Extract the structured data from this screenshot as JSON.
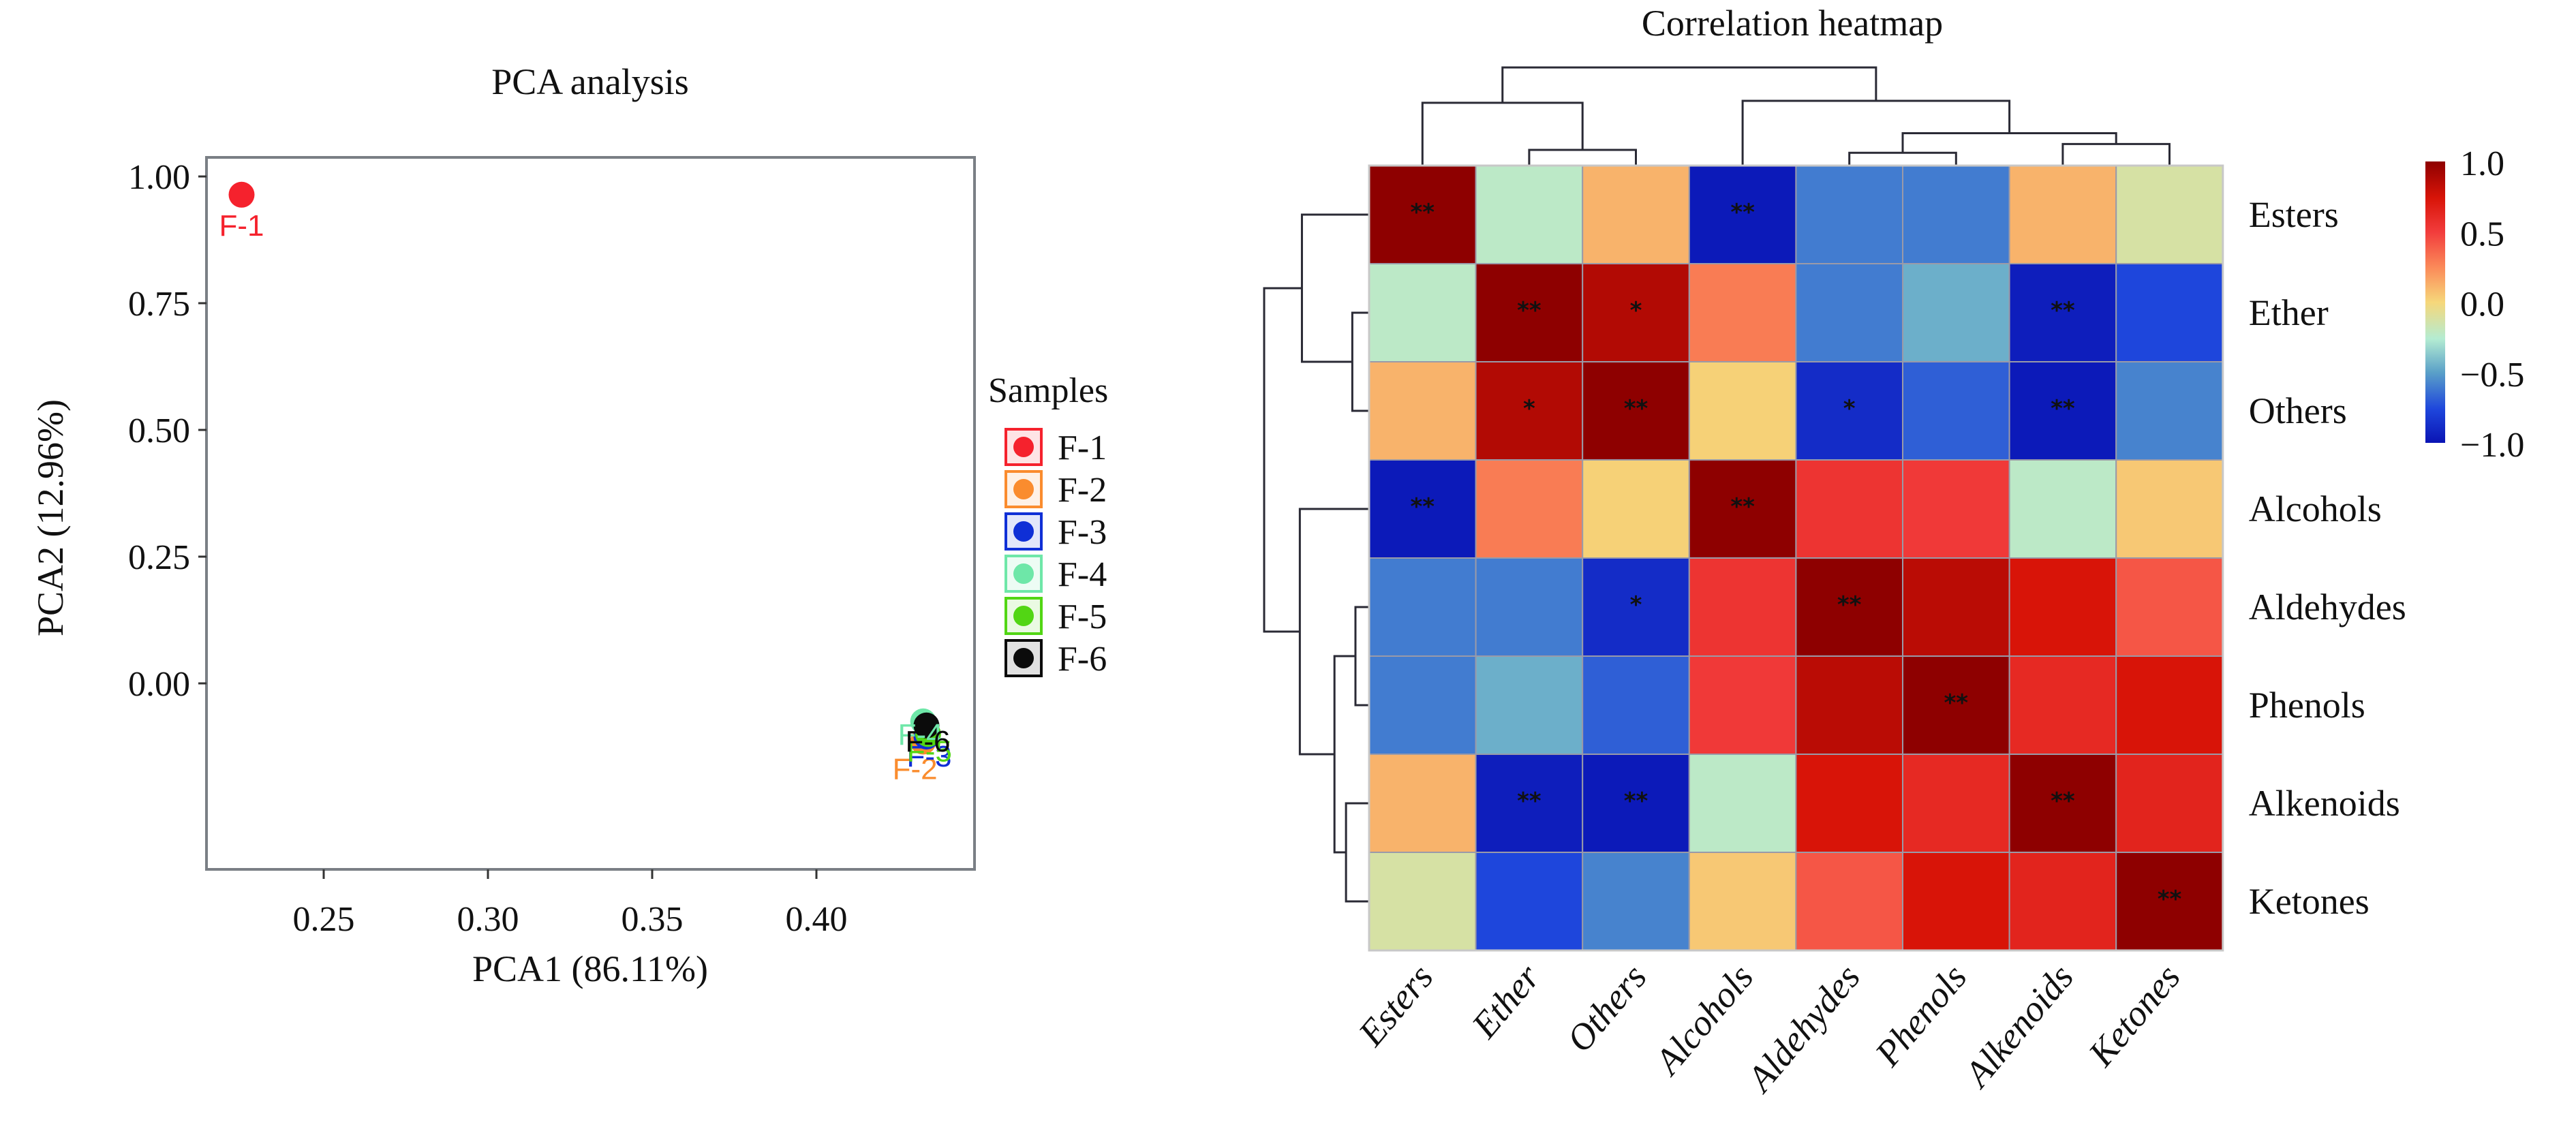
{
  "chart_data": [
    {
      "type": "scatter",
      "title": "PCA analysis",
      "xlabel": "PCA1 (86.11%)",
      "ylabel": "PCA2 (12.96%)",
      "xlim": [
        0.215,
        0.4395
      ],
      "ylim": [
        -0.37,
        1.04
      ],
      "xticks": [
        "0.25",
        "0.30",
        "0.35",
        "0.40"
      ],
      "xtick_values": [
        0.25,
        0.3,
        0.35,
        0.4
      ],
      "yticks": [
        "1.00",
        "0.75",
        "0.50",
        "0.25",
        "0.00"
      ],
      "ytick_values": [
        1.0,
        0.75,
        0.5,
        0.25,
        0.0
      ],
      "grid": false,
      "legend": {
        "title": "Samples",
        "placement": "right"
      },
      "series": [
        {
          "name": "F-1",
          "color": "#f5222d",
          "x": 0.225,
          "y": 0.964,
          "label": "F-1"
        },
        {
          "name": "F-2",
          "color": "#fa8c2e",
          "x": 0.4325,
          "y": -0.115,
          "label": "F-2"
        },
        {
          "name": "F-3",
          "color": "#0f2fd6",
          "x": 0.4335,
          "y": -0.105,
          "label": "F-3"
        },
        {
          "name": "F-4",
          "color": "#6ee7a8",
          "x": 0.4325,
          "y": -0.075,
          "label": "F-4"
        },
        {
          "name": "F-5",
          "color": "#52d614",
          "x": 0.434,
          "y": -0.1,
          "label": "F-5"
        },
        {
          "name": "F-6",
          "color": "#0b0b0b",
          "x": 0.4335,
          "y": -0.083,
          "label": "F-6"
        }
      ]
    },
    {
      "type": "heatmap",
      "title": "Correlation heatmap",
      "rows": [
        "Esters",
        "Ether",
        "Others",
        "Alcohols",
        "Aldehydes",
        "Phenols",
        "Alkenoids",
        "Ketones"
      ],
      "columns": [
        "Esters",
        "Ether",
        "Others",
        "Alcohols",
        "Aldehydes",
        "Phenols",
        "Alkenoids",
        "Ketones"
      ],
      "values": [
        [
          1.0,
          -0.22,
          0.12,
          -0.97,
          -0.6,
          -0.6,
          0.12,
          -0.12
        ],
        [
          -0.22,
          1.0,
          0.88,
          0.3,
          -0.6,
          -0.45,
          -0.95,
          -0.75
        ],
        [
          0.12,
          0.88,
          1.0,
          0.02,
          -0.88,
          -0.68,
          -0.97,
          -0.58
        ],
        [
          -0.97,
          0.3,
          0.02,
          1.0,
          0.55,
          0.52,
          -0.22,
          0.05
        ],
        [
          -0.6,
          -0.6,
          -0.88,
          0.55,
          1.0,
          0.85,
          0.75,
          0.42
        ],
        [
          -0.6,
          -0.45,
          -0.68,
          0.52,
          0.85,
          1.0,
          0.62,
          0.75
        ],
        [
          0.12,
          -0.95,
          -0.97,
          -0.22,
          0.75,
          0.62,
          1.0,
          0.65
        ],
        [
          -0.12,
          -0.75,
          -0.58,
          0.05,
          0.42,
          0.75,
          0.65,
          1.0
        ]
      ],
      "significance": [
        [
          "**",
          "",
          "",
          "**",
          "",
          "",
          "",
          ""
        ],
        [
          "",
          "**",
          "*",
          "",
          "",
          "",
          "**",
          ""
        ],
        [
          "",
          "*",
          "**",
          "",
          "*",
          "",
          "**",
          ""
        ],
        [
          "**",
          "",
          "",
          "**",
          "",
          "",
          "",
          ""
        ],
        [
          "",
          "",
          "*",
          "",
          "**",
          "",
          "",
          ""
        ],
        [
          "",
          "",
          "",
          "",
          "",
          "**",
          "",
          ""
        ],
        [
          "",
          "**",
          "**",
          "",
          "",
          "",
          "**",
          ""
        ],
        [
          "",
          "",
          "",
          "",
          "",
          "",
          "",
          "**"
        ]
      ],
      "colorbar": {
        "range": [
          -1.0,
          1.0
        ],
        "ticks": [
          "1.0",
          "0.5",
          "0.0",
          "−0.5",
          "−1.0"
        ],
        "tick_values": [
          1.0,
          0.5,
          0.0,
          -0.5,
          -1.0
        ],
        "placement": "right"
      },
      "dendrogram": {
        "clusters": "((Esters,(Ether,Others)),(Alcohols,((Aldehydes,Phenols),(Alkenoids,Ketones))))",
        "merge_heights": {
          "root": 1.0,
          "left": 0.64,
          "right": 0.66,
          "ether_others": 0.16,
          "aldehydes_phenols": 0.13,
          "alkenoids_ketones": 0.22,
          "ald_phen_alk_ket": 0.33
        }
      }
    }
  ]
}
